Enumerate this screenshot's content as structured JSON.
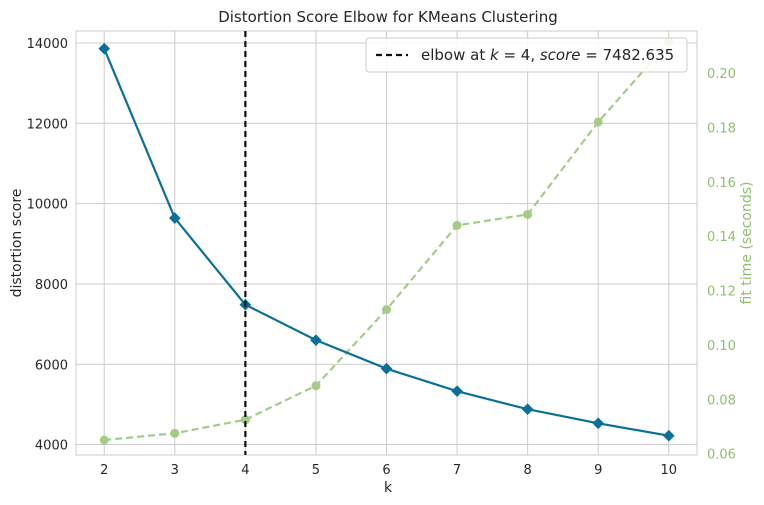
{
  "chart_data": {
    "type": "line",
    "title": "Distortion Score Elbow for KMeans Clustering",
    "xlabel": "k",
    "ylabel": "distortion score",
    "ylabel_right": "fit time (seconds)",
    "x": [
      2,
      3,
      4,
      5,
      6,
      7,
      8,
      9,
      10
    ],
    "xlim": [
      1.6,
      10.4
    ],
    "ylim": [
      3740,
      14300
    ],
    "ylim_right": [
      0.0595,
      0.2155
    ],
    "yticks": [
      4000,
      6000,
      8000,
      10000,
      12000,
      14000
    ],
    "yticks_right": [
      0.06,
      0.08,
      0.1,
      0.12,
      0.14,
      0.16,
      0.18,
      0.2
    ],
    "ytick_labels": [
      "4000",
      "6000",
      "8000",
      "10000",
      "12000",
      "14000"
    ],
    "ytick_labels_right": [
      "0.06",
      "0.08",
      "0.10",
      "0.12",
      "0.14",
      "0.16",
      "0.18",
      "0.20"
    ],
    "xtick_labels": [
      "2",
      "3",
      "4",
      "5",
      "6",
      "7",
      "8",
      "9",
      "10"
    ],
    "grid": true,
    "legend_position": "top-right",
    "series": [
      {
        "name": "distortion score",
        "axis": "left",
        "color": "#0a6f99",
        "marker": "diamond",
        "values": [
          13860,
          9640,
          7483,
          6600,
          5890,
          5330,
          4880,
          4530,
          4220
        ]
      },
      {
        "name": "fit time",
        "axis": "right",
        "color": "#a4cc86",
        "marker": "circle",
        "dashed": true,
        "values": [
          0.065,
          0.0675,
          0.0725,
          0.085,
          0.113,
          0.144,
          0.148,
          0.182,
          0.2115
        ]
      }
    ],
    "elbow": {
      "k": 4,
      "score": 7482.635,
      "legend_prefix": "elbow at ",
      "k_symbol": "k",
      "equals_k": " = 4, ",
      "score_symbol": "score",
      "equals_score": " = 7482.635"
    },
    "colors": {
      "grid": "#cccccc",
      "text": "#262626",
      "right_axis": "#8fc06d",
      "elbow_line": "#111111"
    }
  }
}
